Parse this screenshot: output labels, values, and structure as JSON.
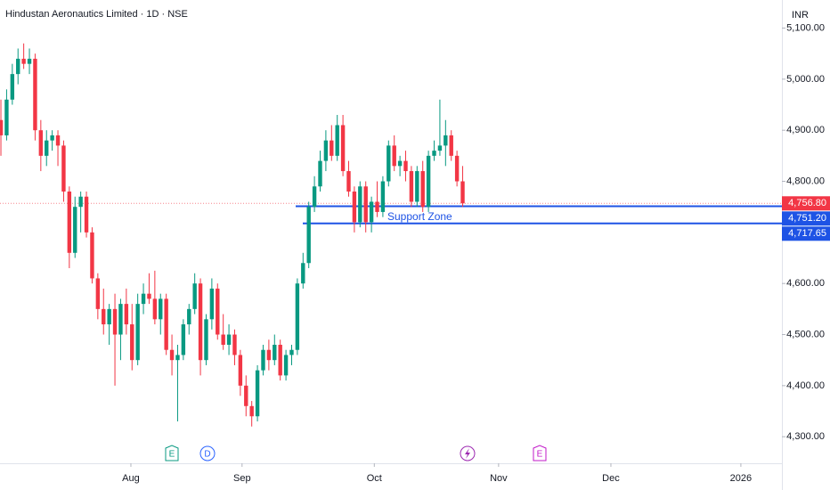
{
  "chart_data": {
    "type": "candlestick",
    "title": "Hindustan Aeronautics Limited · 1D · NSE",
    "currency": "INR",
    "up_color": "#089981",
    "down_color": "#f23645",
    "x": [
      0,
      1,
      2,
      3,
      4,
      5,
      6,
      7,
      8,
      9,
      10,
      11,
      12,
      13,
      14,
      15,
      16,
      17,
      18,
      19,
      20,
      21,
      22,
      23,
      24,
      25,
      26,
      27,
      28,
      29,
      30,
      31,
      32,
      33,
      34,
      35,
      36,
      37,
      38,
      39,
      40,
      41,
      42,
      43,
      44,
      45,
      46,
      47,
      48,
      49,
      50,
      51,
      52,
      53,
      54,
      55,
      56,
      57,
      58,
      59,
      60,
      61,
      62,
      63,
      64,
      65,
      66,
      67,
      68,
      69,
      70,
      71,
      72,
      73,
      74,
      75,
      76,
      77,
      78,
      79,
      80,
      81
    ],
    "open": [
      4920,
      4890,
      4960,
      5010,
      5040,
      5030,
      5040,
      4900,
      4850,
      4880,
      4890,
      4870,
      4780,
      4660,
      4750,
      4770,
      4700,
      4610,
      4550,
      4520,
      4550,
      4500,
      4560,
      4520,
      4450,
      4560,
      4580,
      4570,
      4530,
      4570,
      4470,
      4450,
      4460,
      4520,
      4550,
      4600,
      4450,
      4530,
      4590,
      4500,
      4480,
      4500,
      4460,
      4400,
      4360,
      4340,
      4430,
      4470,
      4450,
      4480,
      4420,
      4460,
      4470,
      4600,
      4640,
      4750,
      4790,
      4840,
      4880,
      4850,
      4910,
      4820,
      4780,
      4720,
      4790,
      4720,
      4760,
      4740,
      4800,
      4870,
      4830,
      4840,
      4820,
      4760,
      4820,
      4750,
      4850,
      4860,
      4870,
      4890,
      4850,
      4800
    ],
    "high": [
      4960,
      4980,
      5030,
      5060,
      5070,
      5060,
      5050,
      4920,
      4900,
      4900,
      4900,
      4880,
      4790,
      4770,
      4780,
      4780,
      4710,
      4620,
      4590,
      4560,
      4580,
      4570,
      4590,
      4560,
      4580,
      4600,
      4620,
      4625,
      4580,
      4580,
      4500,
      4480,
      4530,
      4560,
      4620,
      4610,
      4540,
      4610,
      4600,
      4540,
      4520,
      4510,
      4470,
      4420,
      4370,
      4440,
      4480,
      4490,
      4500,
      4490,
      4470,
      4480,
      4610,
      4660,
      4760,
      4810,
      4860,
      4900,
      4910,
      4930,
      4930,
      4840,
      4790,
      4800,
      4800,
      4770,
      4800,
      4810,
      4880,
      4890,
      4850,
      4860,
      4830,
      4830,
      4840,
      4860,
      4880,
      4960,
      4920,
      4900,
      4860,
      4830
    ],
    "low": [
      4850,
      4880,
      4950,
      4990,
      5020,
      5010,
      4880,
      4820,
      4830,
      4860,
      4830,
      4760,
      4630,
      4650,
      4700,
      4690,
      4600,
      4530,
      4500,
      4480,
      4400,
      4450,
      4500,
      4430,
      4440,
      4540,
      4560,
      4520,
      4500,
      4460,
      4420,
      4330,
      4450,
      4500,
      4540,
      4420,
      4440,
      4510,
      4490,
      4470,
      4460,
      4440,
      4380,
      4340,
      4320,
      4330,
      4420,
      4430,
      4440,
      4410,
      4410,
      4440,
      4460,
      4590,
      4630,
      4740,
      4780,
      4820,
      4840,
      4840,
      4810,
      4770,
      4700,
      4710,
      4700,
      4700,
      4730,
      4730,
      4790,
      4820,
      4810,
      4800,
      4750,
      4750,
      4740,
      4740,
      4840,
      4850,
      4830,
      4840,
      4790,
      4750
    ],
    "close": [
      4890,
      4960,
      5010,
      5040,
      5030,
      5040,
      4900,
      4850,
      4880,
      4890,
      4870,
      4780,
      4660,
      4750,
      4770,
      4700,
      4610,
      4550,
      4520,
      4550,
      4500,
      4560,
      4520,
      4450,
      4560,
      4580,
      4570,
      4530,
      4570,
      4470,
      4450,
      4460,
      4520,
      4550,
      4600,
      4450,
      4530,
      4590,
      4500,
      4480,
      4500,
      4460,
      4400,
      4360,
      4340,
      4430,
      4470,
      4450,
      4480,
      4420,
      4460,
      4470,
      4600,
      4640,
      4750,
      4790,
      4840,
      4880,
      4850,
      4910,
      4820,
      4780,
      4720,
      4790,
      4720,
      4760,
      4740,
      4800,
      4870,
      4830,
      4840,
      4820,
      4760,
      4820,
      4750,
      4850,
      4860,
      4870,
      4890,
      4850,
      4800,
      4756.8
    ],
    "xlim": [
      -0.16,
      137
    ],
    "xticks": [
      {
        "value": 22.8,
        "label": "Aug"
      },
      {
        "value": 42.3,
        "label": "Sep"
      },
      {
        "value": 65.5,
        "label": "Oct"
      },
      {
        "value": 87.3,
        "label": "Nov"
      },
      {
        "value": 107,
        "label": "Dec"
      },
      {
        "value": 129.8,
        "label": "2026"
      }
    ],
    "ylim": [
      4248,
      5155
    ],
    "yticks": [
      {
        "value": 4300,
        "label": "4,300.00"
      },
      {
        "value": 4400,
        "label": "4,400.00"
      },
      {
        "value": 4500,
        "label": "4,500.00"
      },
      {
        "value": 4600,
        "label": "4,600.00"
      },
      {
        "value": 4700,
        "label": "4,700.00"
      },
      {
        "value": 4800,
        "label": "4,800.00"
      },
      {
        "value": 4900,
        "label": "4,900.00"
      },
      {
        "value": 5000,
        "label": "5,000.00"
      },
      {
        "value": 5100,
        "label": "5,100.00"
      }
    ],
    "price_lines": [
      {
        "value": 4756.8,
        "label": "4,756.80",
        "color": "#f23645"
      },
      {
        "value": 4751.2,
        "label": "4,751.20",
        "color": "#1e53e5"
      },
      {
        "value": 4717.65,
        "label": "4,717.65",
        "color": "#1e53e5"
      }
    ],
    "annotation": "Support Zone",
    "events": [
      "E",
      "D",
      "E"
    ]
  }
}
